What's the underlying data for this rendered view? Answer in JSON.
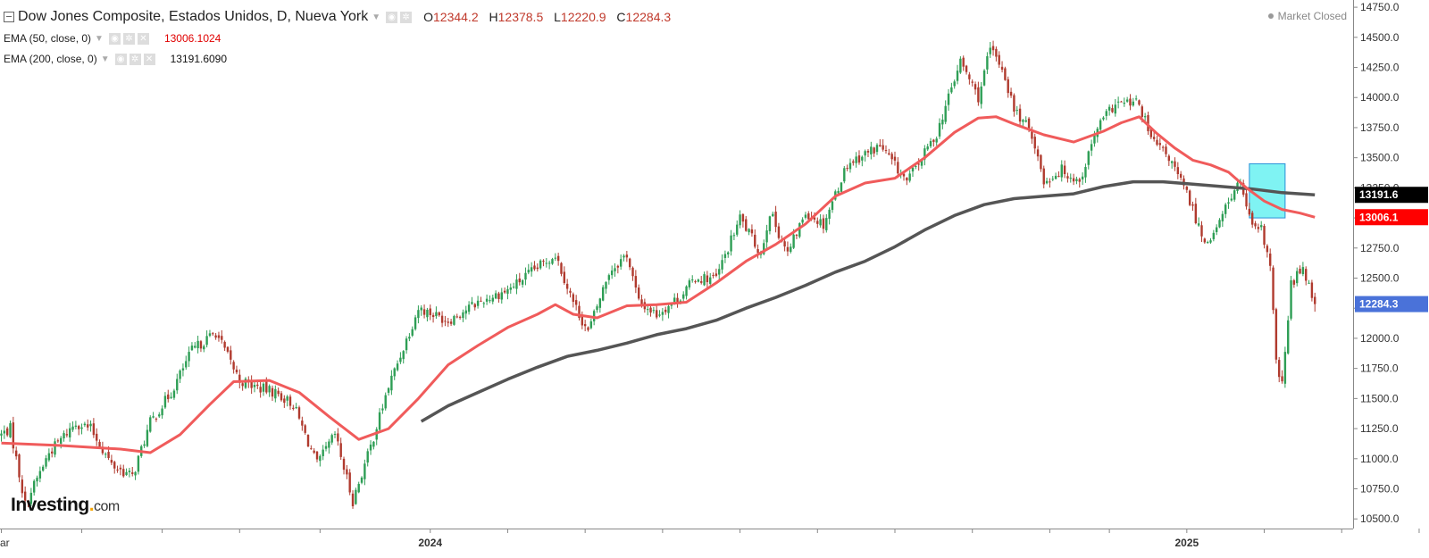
{
  "header": {
    "title": "Dow Jones Composite, Estados Unidos, D, Nueva York",
    "ohlc": [
      {
        "label": "O",
        "value": "12344.2"
      },
      {
        "label": "H",
        "value": "12378.5"
      },
      {
        "label": "L",
        "value": "12220.9"
      },
      {
        "label": "C",
        "value": "12284.3"
      }
    ],
    "market_status": "Market Closed"
  },
  "indicators": [
    {
      "label": "EMA (50, close, 0)",
      "value": "13006.1024",
      "color": "#f05b5b"
    },
    {
      "label": "EMA (200, close, 0)",
      "value": "13191.6090",
      "color": "#555555"
    }
  ],
  "logo": {
    "brand": "Investing",
    "suffix": "com"
  },
  "chart_data": {
    "type": "candlestick",
    "y_axis": {
      "position": "right",
      "min": 10420,
      "max": 14810,
      "ticks": [
        10500,
        10750,
        11000,
        11250,
        11500,
        11750,
        12000,
        12250,
        12500,
        12750,
        13000,
        13250,
        13500,
        13750,
        14000,
        14250,
        14500,
        14750
      ],
      "tick_labels": [
        "10500.0",
        "10750.0",
        "11000.0",
        "11250.0",
        "11500.0",
        "11750.0",
        "12000.0",
        "12250.0",
        "12500.0",
        "12750.0",
        "13000.0",
        "13250.0",
        "13500.0",
        "13750.0",
        "14000.0",
        "14250.0",
        "14500.0",
        "14750.0"
      ]
    },
    "x_axis": {
      "tick_labels": [
        {
          "label": "ar",
          "slot": 0
        },
        {
          "label": "2024",
          "slot": 144
        },
        {
          "label": "2025",
          "slot": 398
        }
      ],
      "minor_tick_slots": [
        27,
        54,
        80,
        107,
        170,
        196,
        222,
        248,
        274,
        300,
        326,
        352,
        372,
        424,
        450,
        476
      ]
    },
    "price_badges": [
      {
        "label": "13191.6",
        "value": 13191.6,
        "color": "#000000"
      },
      {
        "label": "13006.1",
        "value": 13006.1,
        "color": "#ff0000"
      },
      {
        "label": "12284.3",
        "value": 12284.3,
        "color": "#4a72d9"
      }
    ],
    "anchors": [
      [
        0,
        11200
      ],
      [
        3,
        11250
      ],
      [
        8,
        10620
      ],
      [
        16,
        11050
      ],
      [
        25,
        11300
      ],
      [
        30,
        11250
      ],
      [
        37,
        10950
      ],
      [
        44,
        10850
      ],
      [
        50,
        11300
      ],
      [
        57,
        11550
      ],
      [
        64,
        11900
      ],
      [
        72,
        12050
      ],
      [
        80,
        11650
      ],
      [
        85,
        11600
      ],
      [
        92,
        11550
      ],
      [
        98,
        11450
      ],
      [
        102,
        11200
      ],
      [
        106,
        10950
      ],
      [
        112,
        11200
      ],
      [
        118,
        10650
      ],
      [
        124,
        11100
      ],
      [
        130,
        11600
      ],
      [
        140,
        12250
      ],
      [
        150,
        12150
      ],
      [
        160,
        12300
      ],
      [
        170,
        12400
      ],
      [
        178,
        12550
      ],
      [
        186,
        12700
      ],
      [
        192,
        12300
      ],
      [
        197,
        12050
      ],
      [
        204,
        12550
      ],
      [
        210,
        12700
      ],
      [
        214,
        12300
      ],
      [
        220,
        12200
      ],
      [
        228,
        12350
      ],
      [
        233,
        12500
      ],
      [
        240,
        12500
      ],
      [
        248,
        13000
      ],
      [
        255,
        12700
      ],
      [
        258,
        13050
      ],
      [
        264,
        12700
      ],
      [
        270,
        13050
      ],
      [
        276,
        12950
      ],
      [
        284,
        13450
      ],
      [
        295,
        13600
      ],
      [
        304,
        13300
      ],
      [
        314,
        13700
      ],
      [
        322,
        14300
      ],
      [
        328,
        14000
      ],
      [
        332,
        14400
      ],
      [
        336,
        14250
      ],
      [
        340,
        13900
      ],
      [
        346,
        13700
      ],
      [
        350,
        13300
      ],
      [
        356,
        13400
      ],
      [
        362,
        13300
      ],
      [
        368,
        13750
      ],
      [
        374,
        13950
      ],
      [
        382,
        13950
      ],
      [
        386,
        13650
      ],
      [
        392,
        13500
      ],
      [
        398,
        13200
      ],
      [
        404,
        12800
      ],
      [
        408,
        12900
      ],
      [
        412,
        13150
      ],
      [
        416,
        13300
      ],
      [
        420,
        12900
      ],
      [
        423,
        12900
      ],
      [
        426,
        12600
      ],
      [
        428,
        11800
      ],
      [
        430,
        11600
      ],
      [
        433,
        12450
      ],
      [
        437,
        12600
      ],
      [
        441,
        12284.3
      ]
    ],
    "ema50": [
      [
        0,
        11130
      ],
      [
        20,
        11110
      ],
      [
        40,
        11080
      ],
      [
        50,
        11050
      ],
      [
        60,
        11200
      ],
      [
        70,
        11450
      ],
      [
        78,
        11640
      ],
      [
        90,
        11650
      ],
      [
        100,
        11550
      ],
      [
        110,
        11350
      ],
      [
        120,
        11160
      ],
      [
        130,
        11250
      ],
      [
        140,
        11500
      ],
      [
        150,
        11780
      ],
      [
        160,
        11940
      ],
      [
        170,
        12090
      ],
      [
        180,
        12200
      ],
      [
        186,
        12280
      ],
      [
        192,
        12200
      ],
      [
        200,
        12170
      ],
      [
        210,
        12270
      ],
      [
        220,
        12280
      ],
      [
        230,
        12300
      ],
      [
        240,
        12460
      ],
      [
        250,
        12640
      ],
      [
        260,
        12780
      ],
      [
        270,
        12950
      ],
      [
        280,
        13180
      ],
      [
        290,
        13290
      ],
      [
        300,
        13330
      ],
      [
        310,
        13500
      ],
      [
        320,
        13710
      ],
      [
        328,
        13830
      ],
      [
        334,
        13840
      ],
      [
        340,
        13780
      ],
      [
        350,
        13690
      ],
      [
        360,
        13630
      ],
      [
        370,
        13720
      ],
      [
        376,
        13790
      ],
      [
        382,
        13840
      ],
      [
        388,
        13700
      ],
      [
        394,
        13580
      ],
      [
        400,
        13480
      ],
      [
        406,
        13440
      ],
      [
        412,
        13380
      ],
      [
        418,
        13250
      ],
      [
        424,
        13140
      ],
      [
        430,
        13070
      ],
      [
        436,
        13040
      ],
      [
        441,
        13006.1
      ]
    ],
    "ema200": [
      [
        141,
        11310
      ],
      [
        150,
        11440
      ],
      [
        160,
        11550
      ],
      [
        170,
        11660
      ],
      [
        180,
        11760
      ],
      [
        190,
        11850
      ],
      [
        200,
        11900
      ],
      [
        210,
        11960
      ],
      [
        220,
        12030
      ],
      [
        230,
        12080
      ],
      [
        240,
        12150
      ],
      [
        250,
        12250
      ],
      [
        260,
        12340
      ],
      [
        270,
        12440
      ],
      [
        280,
        12550
      ],
      [
        290,
        12640
      ],
      [
        300,
        12760
      ],
      [
        310,
        12900
      ],
      [
        320,
        13020
      ],
      [
        330,
        13110
      ],
      [
        340,
        13160
      ],
      [
        350,
        13180
      ],
      [
        360,
        13200
      ],
      [
        370,
        13260
      ],
      [
        380,
        13300
      ],
      [
        390,
        13300
      ],
      [
        400,
        13280
      ],
      [
        410,
        13260
      ],
      [
        420,
        13240
      ],
      [
        430,
        13210
      ],
      [
        441,
        13191.6
      ]
    ],
    "highlight": {
      "slot_start": 419,
      "slot_end": 431,
      "y_top": 13450,
      "y_bottom": 13000,
      "fill": "#7ff3f3"
    },
    "colors": {
      "up": "#2e9e55",
      "down": "#b03a2e",
      "ema50": "#f05b5b",
      "ema200": "#555555"
    }
  }
}
